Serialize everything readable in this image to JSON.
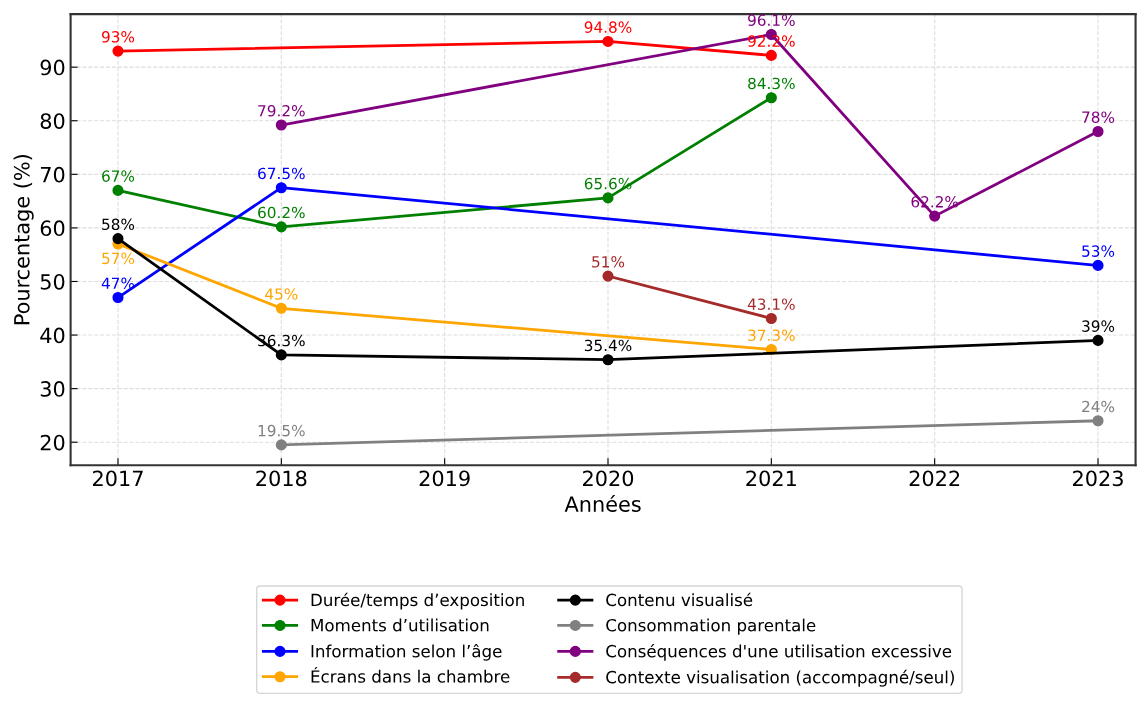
{
  "chart_data": {
    "type": "line",
    "xlabel": "Années",
    "ylabel": "Pourcentage (%)",
    "xlim": [
      2016.71,
      2023.23
    ],
    "xticks": [
      2017,
      2018,
      2019,
      2020,
      2021,
      2022,
      2023
    ],
    "ylim": [
      15.7,
      99.9
    ],
    "yticks": [
      20,
      30,
      40,
      50,
      60,
      70,
      80,
      90
    ],
    "grid": true,
    "legend": "bottom",
    "marker": "circle",
    "line_style": "solid",
    "series": [
      {
        "name": "Durée/temps d’exposition",
        "color": "#ff0000",
        "x": [
          2017,
          2020,
          2021
        ],
        "values": [
          93,
          94.8,
          92.2
        ],
        "value_labels": [
          "93%",
          "94.8%",
          "92.2%"
        ]
      },
      {
        "name": "Moments d’utilisation",
        "color": "#008000",
        "x": [
          2017,
          2018,
          2020,
          2021
        ],
        "values": [
          67,
          60.2,
          65.6,
          84.3
        ],
        "value_labels": [
          "67%",
          "60.2%",
          "65.6%",
          "84.3%"
        ]
      },
      {
        "name": "Information selon l’âge",
        "color": "#0000ff",
        "x": [
          2017,
          2018,
          2023
        ],
        "values": [
          47,
          67.5,
          53
        ],
        "value_labels": [
          "47%",
          "67.5%",
          "53%"
        ]
      },
      {
        "name": "Écrans dans la chambre",
        "color": "#ffa500",
        "x": [
          2017,
          2018,
          2021
        ],
        "values": [
          57,
          45,
          37.3
        ],
        "value_labels": [
          "57%",
          "45%",
          "37.3%"
        ]
      },
      {
        "name": "Contenu visualisé",
        "color": "#000000",
        "x": [
          2017,
          2018,
          2020,
          2023
        ],
        "values": [
          58,
          36.3,
          35.4,
          39
        ],
        "value_labels": [
          "58%",
          "36.3%",
          "35.4%",
          "39%"
        ]
      },
      {
        "name": "Consommation parentale",
        "color": "#808080",
        "x": [
          2018,
          2023
        ],
        "values": [
          19.5,
          24
        ],
        "value_labels": [
          "19.5%",
          "24%"
        ]
      },
      {
        "name": "Conséquences d'une utilisation excessive",
        "color": "#800080",
        "x": [
          2018,
          2021,
          2022,
          2023
        ],
        "values": [
          79.2,
          96.1,
          62.2,
          78
        ],
        "value_labels": [
          "79.2%",
          "96.1%",
          "62.2%",
          "78%"
        ]
      },
      {
        "name": "Contexte visualisation (accompagné/seul)",
        "color": "#a52a2a",
        "x": [
          2020,
          2021
        ],
        "values": [
          51,
          43.1
        ],
        "value_labels": [
          "51%",
          "43.1%"
        ]
      }
    ]
  }
}
